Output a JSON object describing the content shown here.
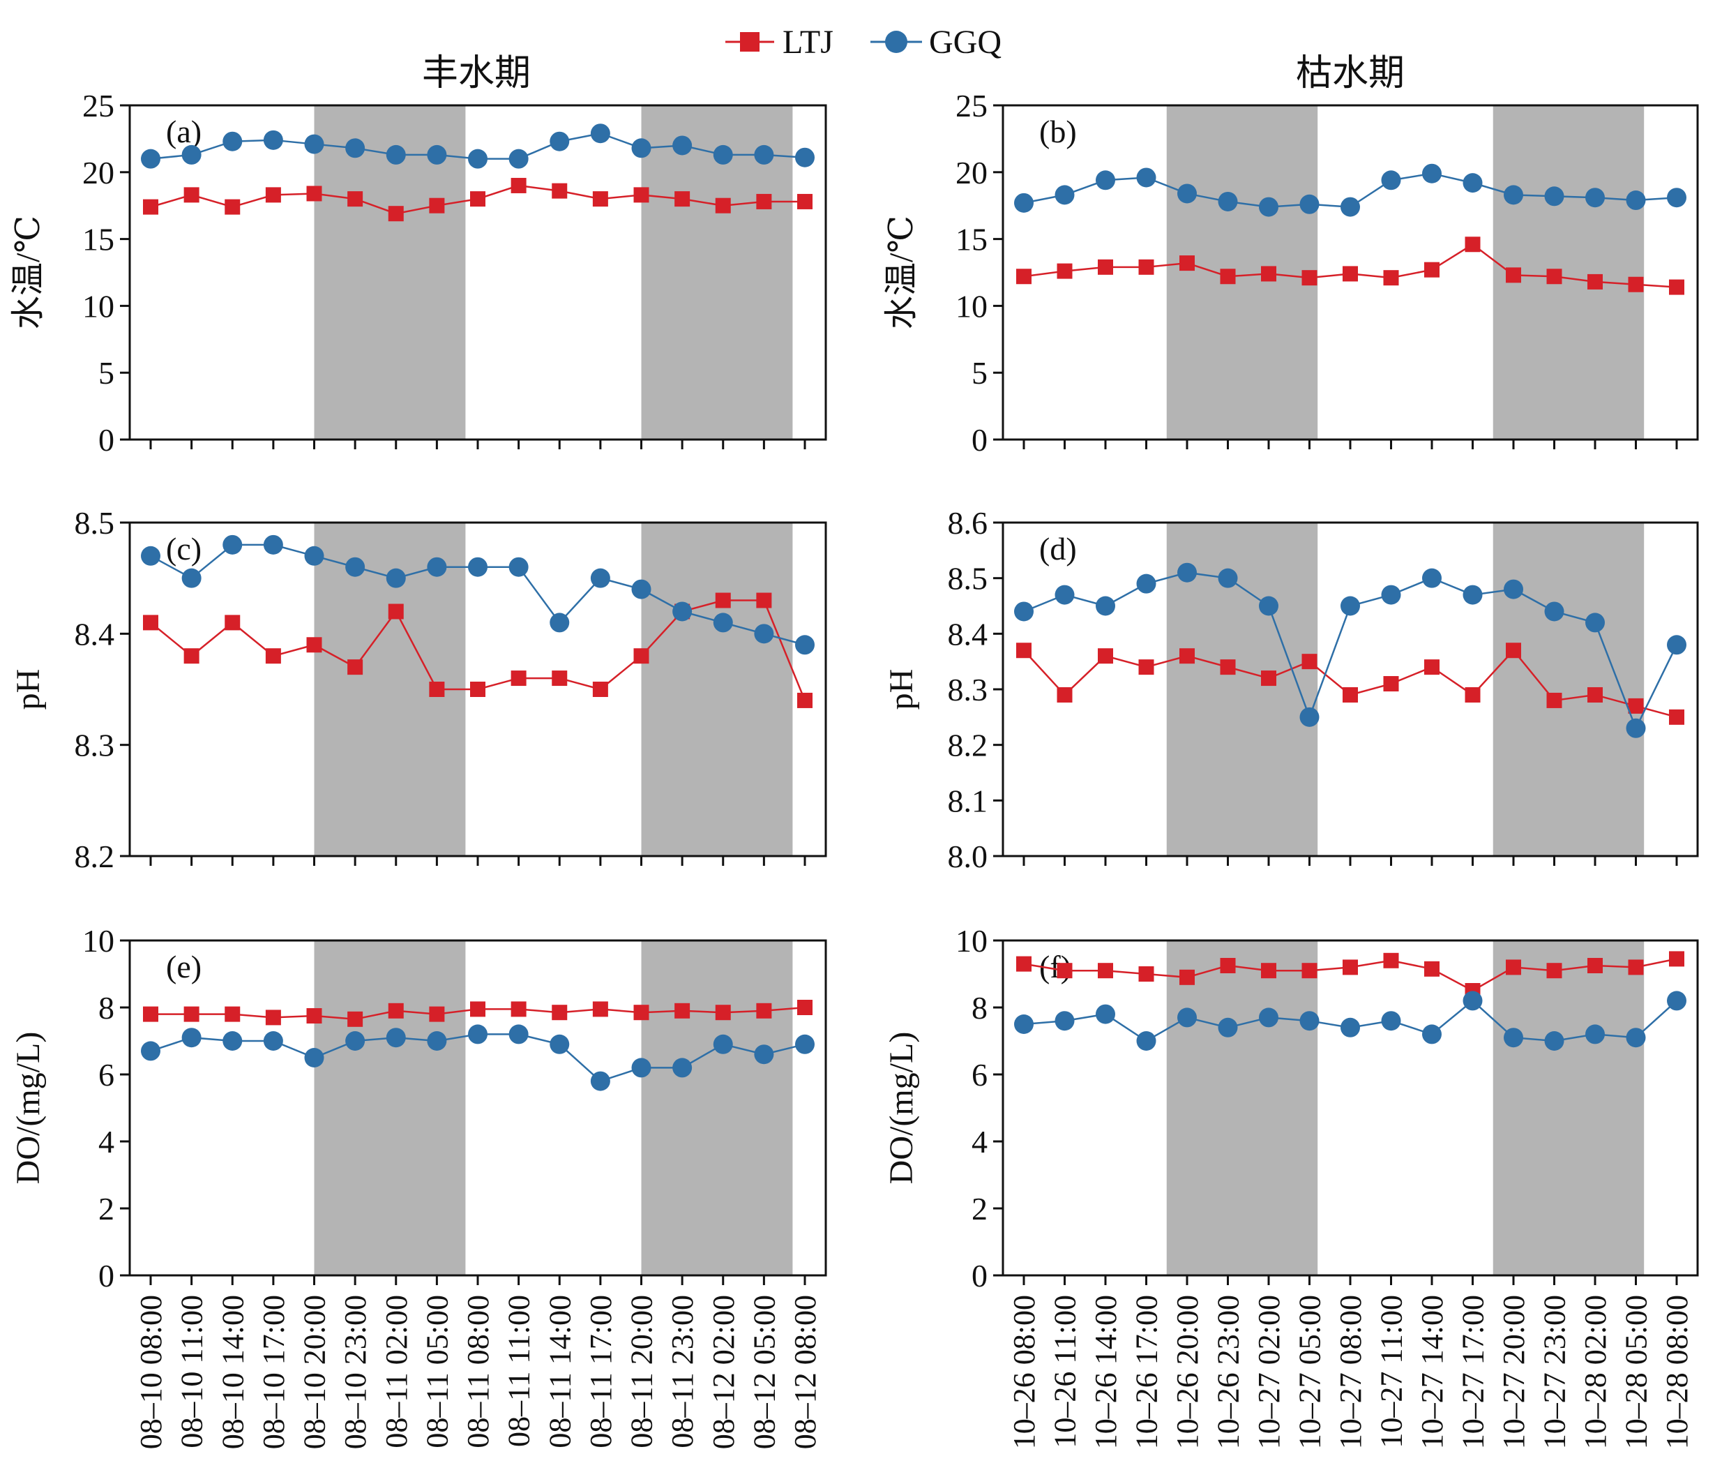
{
  "legend": {
    "series": [
      {
        "name": "LTJ",
        "color": "#d62028",
        "marker": "square"
      },
      {
        "name": "GGQ",
        "color": "#2e6fa7",
        "marker": "circle"
      }
    ]
  },
  "columns": {
    "left_title": "丰水期",
    "right_title": "枯水期"
  },
  "chart_data": [
    {
      "panel": "(a)",
      "type": "line",
      "season": "丰水期",
      "ylabel": "水温/℃",
      "ylim": [
        0,
        25
      ],
      "yticks": [
        "0",
        "5",
        "10",
        "15",
        "20",
        "25"
      ],
      "categories": [
        "08–10 08:00",
        "08–10 11:00",
        "08–10 14:00",
        "08–10 17:00",
        "08–10 20:00",
        "08–10 23:00",
        "08–11 02:00",
        "08–11 05:00",
        "08–11 08:00",
        "08–11 11:00",
        "08–11 14:00",
        "08–11 17:00",
        "08–11 20:00",
        "08–11 23:00",
        "08–12 02:00",
        "08–12 05:00",
        "08–12 08:00"
      ],
      "shaded_ranges": [
        [
          4,
          7.7
        ],
        [
          12,
          15.7
        ]
      ],
      "series": [
        {
          "name": "LTJ",
          "values": [
            17.4,
            18.3,
            17.4,
            18.3,
            18.4,
            18.0,
            16.9,
            17.5,
            18.0,
            19.0,
            18.6,
            18.0,
            18.3,
            18.0,
            17.5,
            17.8,
            17.8
          ]
        },
        {
          "name": "GGQ",
          "values": [
            21.0,
            21.3,
            22.3,
            22.4,
            22.1,
            21.8,
            21.3,
            21.3,
            21.0,
            21.0,
            22.3,
            22.9,
            21.8,
            22.0,
            21.3,
            21.3,
            21.1
          ]
        }
      ]
    },
    {
      "panel": "(b)",
      "type": "line",
      "season": "枯水期",
      "ylabel": "水温/℃",
      "ylim": [
        0,
        25
      ],
      "yticks": [
        "0",
        "5",
        "10",
        "15",
        "20",
        "25"
      ],
      "categories": [
        "10–26 08:00",
        "10–26 11:00",
        "10–26 14:00",
        "10–26 17:00",
        "10–26 20:00",
        "10–26 23:00",
        "10–27 02:00",
        "10–27 05:00",
        "10–27 08:00",
        "10–27 11:00",
        "10–27 14:00",
        "10–27 17:00",
        "10–27 20:00",
        "10–27 23:00",
        "10–28 02:00",
        "10–28 05:00",
        "10–28 08:00"
      ],
      "shaded_ranges": [
        [
          3.5,
          7.2
        ],
        [
          11.5,
          15.2
        ]
      ],
      "series": [
        {
          "name": "LTJ",
          "values": [
            12.2,
            12.6,
            12.9,
            12.9,
            13.2,
            12.2,
            12.4,
            12.1,
            12.4,
            12.1,
            12.7,
            14.6,
            12.3,
            12.2,
            11.8,
            11.6,
            11.4
          ]
        },
        {
          "name": "GGQ",
          "values": [
            17.7,
            18.3,
            19.4,
            19.6,
            18.4,
            17.8,
            17.4,
            17.6,
            17.4,
            19.4,
            19.9,
            19.2,
            18.3,
            18.2,
            18.1,
            17.9,
            18.1
          ]
        }
      ]
    },
    {
      "panel": "(c)",
      "type": "line",
      "season": "丰水期",
      "ylabel": "pH",
      "ylim": [
        8.2,
        8.5
      ],
      "yticks": [
        "8.2",
        "8.3",
        "8.4",
        "8.5"
      ],
      "categories": [
        "08–10 08:00",
        "08–10 11:00",
        "08–10 14:00",
        "08–10 17:00",
        "08–10 20:00",
        "08–10 23:00",
        "08–11 02:00",
        "08–11 05:00",
        "08–11 08:00",
        "08–11 11:00",
        "08–11 14:00",
        "08–11 17:00",
        "08–11 20:00",
        "08–11 23:00",
        "08–12 02:00",
        "08–12 05:00",
        "08–12 08:00"
      ],
      "shaded_ranges": [
        [
          4,
          7.7
        ],
        [
          12,
          15.7
        ]
      ],
      "series": [
        {
          "name": "LTJ",
          "values": [
            8.41,
            8.38,
            8.41,
            8.38,
            8.39,
            8.37,
            8.42,
            8.35,
            8.35,
            8.36,
            8.36,
            8.35,
            8.38,
            8.42,
            8.43,
            8.43,
            8.34
          ]
        },
        {
          "name": "GGQ",
          "values": [
            8.47,
            8.45,
            8.48,
            8.48,
            8.47,
            8.46,
            8.45,
            8.46,
            8.46,
            8.46,
            8.41,
            8.45,
            8.44,
            8.42,
            8.41,
            8.4,
            8.39
          ]
        }
      ]
    },
    {
      "panel": "(d)",
      "type": "line",
      "season": "枯水期",
      "ylabel": "pH",
      "ylim": [
        8.0,
        8.6
      ],
      "yticks": [
        "8.0",
        "8.1",
        "8.2",
        "8.3",
        "8.4",
        "8.5",
        "8.6"
      ],
      "categories": [
        "10–26 08:00",
        "10–26 11:00",
        "10–26 14:00",
        "10–26 17:00",
        "10–26 20:00",
        "10–26 23:00",
        "10–27 02:00",
        "10–27 05:00",
        "10–27 08:00",
        "10–27 11:00",
        "10–27 14:00",
        "10–27 17:00",
        "10–27 20:00",
        "10–27 23:00",
        "10–28 02:00",
        "10–28 05:00",
        "10–28 08:00"
      ],
      "shaded_ranges": [
        [
          3.5,
          7.2
        ],
        [
          11.5,
          15.2
        ]
      ],
      "series": [
        {
          "name": "LTJ",
          "values": [
            8.37,
            8.29,
            8.36,
            8.34,
            8.36,
            8.34,
            8.32,
            8.35,
            8.29,
            8.31,
            8.34,
            8.29,
            8.37,
            8.28,
            8.29,
            8.27,
            8.25
          ]
        },
        {
          "name": "GGQ",
          "values": [
            8.44,
            8.47,
            8.45,
            8.49,
            8.51,
            8.5,
            8.45,
            8.25,
            8.45,
            8.47,
            8.5,
            8.47,
            8.48,
            8.44,
            8.42,
            8.23,
            8.38
          ]
        }
      ]
    },
    {
      "panel": "(e)",
      "type": "line",
      "season": "丰水期",
      "ylabel": "DO/(mg/L)",
      "ylim": [
        0,
        10
      ],
      "yticks": [
        "0",
        "2",
        "4",
        "6",
        "8",
        "10"
      ],
      "categories": [
        "08–10 08:00",
        "08–10 11:00",
        "08–10 14:00",
        "08–10 17:00",
        "08–10 20:00",
        "08–10 23:00",
        "08–11 02:00",
        "08–11 05:00",
        "08–11 08:00",
        "08–11 11:00",
        "08–11 14:00",
        "08–11 17:00",
        "08–11 20:00",
        "08–11 23:00",
        "08–12 02:00",
        "08–12 05:00",
        "08–12 08:00"
      ],
      "shaded_ranges": [
        [
          4,
          7.7
        ],
        [
          12,
          15.7
        ]
      ],
      "series": [
        {
          "name": "LTJ",
          "values": [
            7.8,
            7.8,
            7.8,
            7.7,
            7.75,
            7.65,
            7.9,
            7.8,
            7.95,
            7.95,
            7.85,
            7.95,
            7.85,
            7.9,
            7.85,
            7.9,
            8.0
          ]
        },
        {
          "name": "GGQ",
          "values": [
            6.7,
            7.1,
            7.0,
            7.0,
            6.5,
            7.0,
            7.1,
            7.0,
            7.2,
            7.2,
            6.9,
            5.8,
            6.2,
            6.2,
            6.9,
            6.6,
            6.9
          ]
        }
      ]
    },
    {
      "panel": "(f)",
      "type": "line",
      "season": "枯水期",
      "ylabel": "DO/(mg/L)",
      "ylim": [
        0,
        10
      ],
      "yticks": [
        "0",
        "2",
        "4",
        "6",
        "8",
        "10"
      ],
      "categories": [
        "10–26 08:00",
        "10–26 11:00",
        "10–26 14:00",
        "10–26 17:00",
        "10–26 20:00",
        "10–26 23:00",
        "10–27 02:00",
        "10–27 05:00",
        "10–27 08:00",
        "10–27 11:00",
        "10–27 14:00",
        "10–27 17:00",
        "10–27 20:00",
        "10–27 23:00",
        "10–28 02:00",
        "10–28 05:00",
        "10–28 08:00"
      ],
      "shaded_ranges": [
        [
          3.5,
          7.2
        ],
        [
          11.5,
          15.2
        ]
      ],
      "series": [
        {
          "name": "LTJ",
          "values": [
            9.3,
            9.1,
            9.1,
            9.0,
            8.9,
            9.25,
            9.1,
            9.1,
            9.2,
            9.4,
            9.15,
            8.5,
            9.2,
            9.1,
            9.25,
            9.2,
            9.45
          ]
        },
        {
          "name": "GGQ",
          "values": [
            7.5,
            7.6,
            7.8,
            7.0,
            7.7,
            7.4,
            7.7,
            7.6,
            7.4,
            7.6,
            7.2,
            8.2,
            7.1,
            7.0,
            7.2,
            7.1,
            8.2
          ]
        }
      ]
    }
  ]
}
